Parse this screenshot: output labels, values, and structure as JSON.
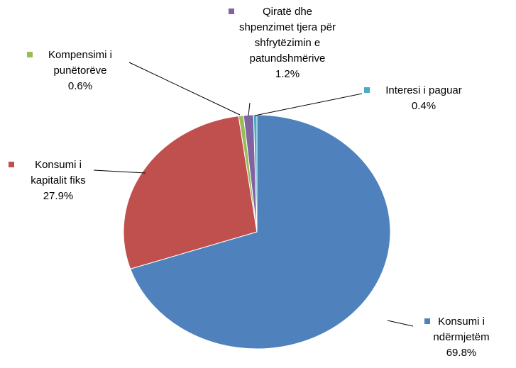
{
  "chart_data": {
    "type": "pie",
    "categories": [
      "Konsumi i ndërmjetëm",
      "Konsumi i kapitalit fiks",
      "Kompensimi i punëtorëve",
      "Qiratë dhe shpenzimet tjera për shfrytëzimin e patundshmërive",
      "Interesi i paguar"
    ],
    "values": [
      69.8,
      27.9,
      0.6,
      1.2,
      0.4
    ],
    "value_labels": [
      "69.8%",
      "27.9%",
      "0.6%",
      "1.2%",
      "0.4%"
    ],
    "colors": [
      "#4f81bd",
      "#c0504d",
      "#9bbb59",
      "#8064a2",
      "#4bacc6"
    ]
  }
}
